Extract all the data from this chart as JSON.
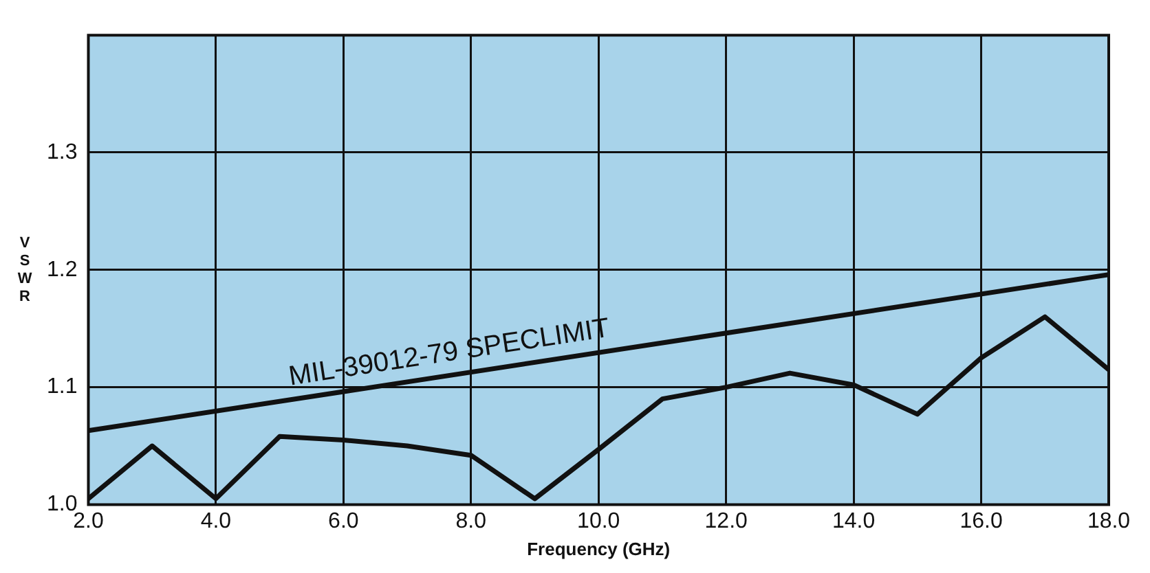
{
  "chart_data": {
    "type": "line",
    "xlabel": "Frequency (GHz)",
    "ylabel": "VSWR",
    "xlim": [
      2,
      18
    ],
    "xticks": [
      {
        "value": 2,
        "label": "2.0"
      },
      {
        "value": 4,
        "label": "4.0"
      },
      {
        "value": 6,
        "label": "6.0"
      },
      {
        "value": 8,
        "label": "8.0"
      },
      {
        "value": 10,
        "label": "10.0"
      },
      {
        "value": 12,
        "label": "12.0"
      },
      {
        "value": 14,
        "label": "14.0"
      },
      {
        "value": 16,
        "label": "16.0"
      },
      {
        "value": 18,
        "label": "18.0"
      }
    ],
    "ylim": [
      1.0,
      1.4
    ],
    "yticks": [
      {
        "value": 1,
        "label": "1.0"
      },
      {
        "value": 1.1,
        "label": "1.1"
      },
      {
        "value": 1.2,
        "label": "1.2"
      },
      {
        "value": 1.3,
        "label": "1.3"
      },
      {
        "value": 1.4,
        "label": null
      }
    ],
    "grid": true,
    "legend": false,
    "marker": "none",
    "line_style": "solid",
    "series": [
      {
        "name": "MIL-39012-79 SPECLIMIT",
        "color": "#111111",
        "x": [
          2,
          18
        ],
        "values": [
          1.063,
          1.196
        ]
      },
      {
        "color": "#111111",
        "x": [
          2,
          3,
          4,
          5,
          6,
          7,
          8,
          9,
          10,
          11,
          12,
          13,
          14,
          15,
          16,
          17,
          18
        ],
        "values": [
          1.005,
          1.05,
          1.005,
          1.058,
          1.055,
          1.05,
          1.042,
          1.005,
          1.047,
          1.09,
          1.1,
          1.112,
          1.102,
          1.077,
          1.125,
          1.16,
          1.115
        ]
      }
    ]
  }
}
